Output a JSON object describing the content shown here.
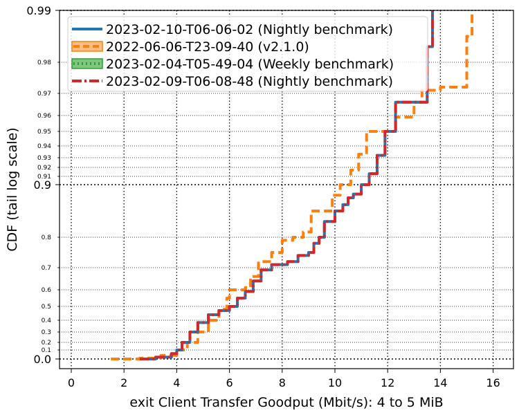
{
  "chart_data": {
    "type": "line",
    "title": "",
    "xlabel": "exit Client Transfer Goodput (Mbit/s): 4 to 5 MiB",
    "ylabel": "CDF (tail log scale)",
    "xlim": [
      -0.4,
      16.8
    ],
    "x_ticks": [
      0,
      2,
      4,
      6,
      8,
      10,
      12,
      14,
      16
    ],
    "x_tick_labels": [
      "0",
      "2",
      "4",
      "6",
      "8",
      "10",
      "12",
      "14",
      "16"
    ],
    "y_scale": "tail-log (linear below 0.9, logit-like tail above 0.9)",
    "ylim": [
      -0.03,
      0.99
    ],
    "y_ticks_major": [
      0.0,
      0.9,
      0.99
    ],
    "y_tick_labels_major": [
      "0.0",
      "0.9",
      "0.99"
    ],
    "y_ticks_minor": [
      0.1,
      0.2,
      0.3,
      0.4,
      0.5,
      0.6,
      0.7,
      0.8,
      0.91,
      0.92,
      0.93,
      0.94,
      0.95,
      0.96,
      0.97,
      0.98
    ],
    "y_tick_labels_minor": [
      "0.1",
      "0.2",
      "0.3",
      "0.4",
      "0.5",
      "0.6",
      "0.7",
      "0.8",
      "0.91",
      "0.92",
      "0.93",
      "0.94",
      "0.95",
      "0.96",
      "0.97",
      "0.98"
    ],
    "grid": true,
    "legend_position": "top-left",
    "series": [
      {
        "name": "2023-02-10-T06-06-02 (Nightly benchmark)",
        "color": "#1f77b4",
        "style": "solid",
        "points": [
          [
            2.6,
            0.0
          ],
          [
            3.2,
            0.02
          ],
          [
            3.8,
            0.06
          ],
          [
            4.0,
            0.1
          ],
          [
            4.2,
            0.2
          ],
          [
            4.5,
            0.3
          ],
          [
            4.8,
            0.38
          ],
          [
            5.2,
            0.44
          ],
          [
            5.6,
            0.47
          ],
          [
            6.0,
            0.5
          ],
          [
            6.3,
            0.55
          ],
          [
            6.6,
            0.59
          ],
          [
            6.9,
            0.64
          ],
          [
            7.2,
            0.69
          ],
          [
            7.6,
            0.71
          ],
          [
            8.2,
            0.72
          ],
          [
            8.6,
            0.74
          ],
          [
            9.0,
            0.75
          ],
          [
            9.2,
            0.78
          ],
          [
            9.4,
            0.8
          ],
          [
            9.6,
            0.83
          ],
          [
            10.0,
            0.85
          ],
          [
            10.3,
            0.862
          ],
          [
            10.5,
            0.875
          ],
          [
            10.7,
            0.882
          ],
          [
            11.0,
            0.9
          ],
          [
            11.3,
            0.913
          ],
          [
            11.6,
            0.932
          ],
          [
            11.9,
            0.95
          ],
          [
            12.3,
            0.966
          ],
          [
            12.6,
            0.966
          ],
          [
            13.3,
            0.966
          ],
          [
            13.5,
            0.983
          ],
          [
            13.7,
            0.99
          ]
        ]
      },
      {
        "name": "2022-06-06-T23-09-40 (v2.1.0)",
        "color": "#ff7f0e",
        "style": "dashed",
        "points": [
          [
            1.5,
            0.0
          ],
          [
            2.6,
            0.01
          ],
          [
            3.4,
            0.04
          ],
          [
            4.0,
            0.1
          ],
          [
            4.4,
            0.2
          ],
          [
            4.8,
            0.3
          ],
          [
            5.2,
            0.4
          ],
          [
            5.6,
            0.48
          ],
          [
            5.9,
            0.55
          ],
          [
            6.0,
            0.6
          ],
          [
            6.6,
            0.61
          ],
          [
            6.8,
            0.66
          ],
          [
            7.1,
            0.72
          ],
          [
            7.6,
            0.75
          ],
          [
            8.0,
            0.79
          ],
          [
            8.4,
            0.8
          ],
          [
            8.8,
            0.81
          ],
          [
            9.1,
            0.85
          ],
          [
            9.6,
            0.85
          ],
          [
            9.9,
            0.88
          ],
          [
            10.2,
            0.9
          ],
          [
            10.6,
            0.917
          ],
          [
            10.9,
            0.933
          ],
          [
            11.2,
            0.95
          ],
          [
            11.6,
            0.95
          ],
          [
            12.3,
            0.959
          ],
          [
            13.0,
            0.966
          ],
          [
            13.3,
            0.971
          ],
          [
            14.0,
            0.972
          ],
          [
            14.9,
            0.972
          ],
          [
            15.0,
            0.985
          ],
          [
            15.2,
            0.99
          ]
        ]
      },
      {
        "name": "2023-02-04-T05-49-04 (Weekly benchmark)",
        "color": "#2ca02c",
        "style": "dotted",
        "points": []
      },
      {
        "name": "2023-02-09-T06-08-48 (Nightly benchmark)",
        "color": "#d62728",
        "style": "dashdot",
        "points": [
          [
            2.6,
            0.0
          ],
          [
            3.2,
            0.02
          ],
          [
            3.8,
            0.06
          ],
          [
            4.0,
            0.1
          ],
          [
            4.2,
            0.2
          ],
          [
            4.5,
            0.3
          ],
          [
            4.8,
            0.38
          ],
          [
            5.2,
            0.44
          ],
          [
            5.6,
            0.47
          ],
          [
            6.0,
            0.5
          ],
          [
            6.3,
            0.55
          ],
          [
            6.6,
            0.59
          ],
          [
            6.9,
            0.64
          ],
          [
            7.2,
            0.69
          ],
          [
            7.6,
            0.71
          ],
          [
            8.2,
            0.72
          ],
          [
            8.6,
            0.74
          ],
          [
            9.0,
            0.75
          ],
          [
            9.2,
            0.78
          ],
          [
            9.4,
            0.8
          ],
          [
            9.6,
            0.83
          ],
          [
            10.0,
            0.85
          ],
          [
            10.3,
            0.862
          ],
          [
            10.5,
            0.875
          ],
          [
            10.7,
            0.882
          ],
          [
            11.0,
            0.9
          ],
          [
            11.3,
            0.913
          ],
          [
            11.6,
            0.932
          ],
          [
            11.9,
            0.95
          ],
          [
            12.3,
            0.966
          ],
          [
            12.6,
            0.966
          ],
          [
            13.3,
            0.966
          ],
          [
            13.5,
            0.983
          ],
          [
            13.7,
            0.99
          ]
        ]
      }
    ]
  }
}
